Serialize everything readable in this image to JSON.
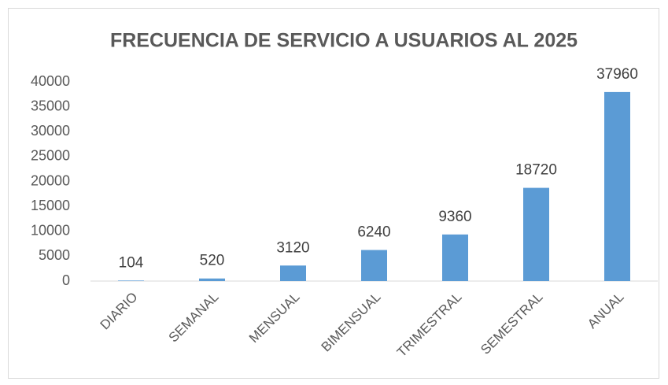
{
  "chart_data": {
    "type": "bar",
    "title": "FRECUENCIA DE SERVICIO A USUARIOS AL 2025",
    "categories": [
      "DIARIO",
      "SEMANAL",
      "MENSUAL",
      "BIMENSUAL",
      "TRIMESTRAL",
      "SEMESTRAL",
      "ANUAL"
    ],
    "values": [
      104,
      520,
      3120,
      6240,
      9360,
      18720,
      37960
    ],
    "color": "#5b9bd5",
    "ylim": [
      0,
      40000
    ],
    "yticks": [
      0,
      5000,
      10000,
      15000,
      20000,
      25000,
      30000,
      35000,
      40000
    ],
    "grid": false
  }
}
